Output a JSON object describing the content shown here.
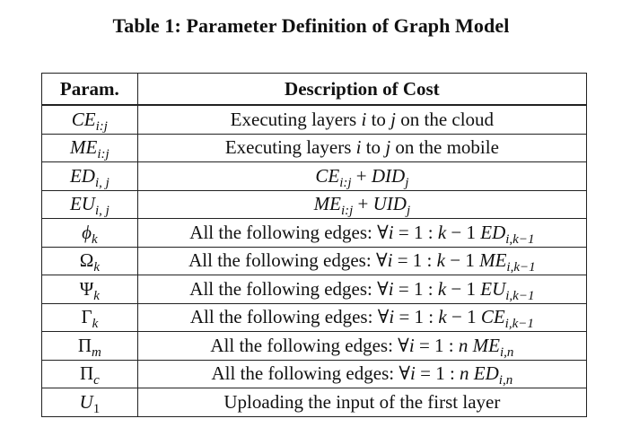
{
  "caption": "Table 1: Parameter Definition of Graph Model",
  "table": {
    "headers": [
      "Param.",
      "Description of Cost"
    ],
    "rows": [
      {
        "param": "CE",
        "param_sub": "i:j",
        "description": "Executing layers i to j on the cloud"
      },
      {
        "param": "ME",
        "param_sub": "i:j",
        "description": "Executing layers i to j on the mobile"
      },
      {
        "param": "ED",
        "param_sub": "i, j",
        "description": "CE_{i:j} + DID_j"
      },
      {
        "param": "EU",
        "param_sub": "i, j",
        "description": "ME_{i:j} + UID_j"
      },
      {
        "param": "ϕ",
        "param_sub": "k",
        "description": "All the following edges: ∀i = 1 : k − 1 ED_{i,k−1}"
      },
      {
        "param": "Ω",
        "param_sub": "k",
        "description": "All the following edges: ∀i = 1 : k − 1 ME_{i,k−1}"
      },
      {
        "param": "Ψ",
        "param_sub": "k",
        "description": "All the following edges: ∀i = 1 : k − 1 EU_{i,k−1}"
      },
      {
        "param": "Γ",
        "param_sub": "k",
        "description": "All the following edges: ∀i = 1 : k − 1 CE_{i,k−1}"
      },
      {
        "param": "Π",
        "param_sub": "m",
        "description": "All the following edges: ∀i = 1 : n ME_{i,n}"
      },
      {
        "param": "Π",
        "param_sub": "c",
        "description": "All the following edges: ∀i = 1 : n ED_{i,n}"
      },
      {
        "param": "U",
        "param_sub": "1",
        "description": "Uploading the input of the first layer"
      }
    ]
  }
}
